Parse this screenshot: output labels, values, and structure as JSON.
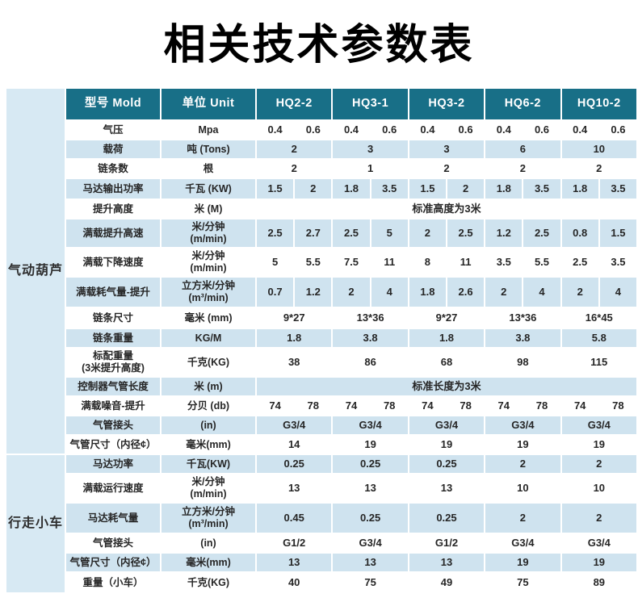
{
  "title": "相关技术参数表",
  "colors": {
    "header_bg": "#186f87",
    "header_text": "#ffffff",
    "row_alt_bg": "#cfe3ef",
    "group_panel_bg": "#d7e9f3",
    "body_text": "#262626"
  },
  "table": {
    "header": {
      "model_col": "型号 Mold",
      "unit_col": "单位 Unit",
      "models": [
        "HQ2-2",
        "HQ3-1",
        "HQ3-2",
        "HQ6-2",
        "HQ10-2"
      ]
    },
    "groups": [
      {
        "label": "气动葫芦",
        "rows": 15
      },
      {
        "label": "行走小车",
        "rows": 6
      }
    ],
    "rows": [
      {
        "label": "气压",
        "unit": [
          "Mpa"
        ],
        "type": "dual",
        "values": [
          "0.4",
          "0.6",
          "0.4",
          "0.6",
          "0.4",
          "0.6",
          "0.4",
          "0.6",
          "0.4",
          "0.6"
        ]
      },
      {
        "label": "载荷",
        "unit": [
          "吨 (Tons)"
        ],
        "type": "single",
        "values": [
          "2",
          "3",
          "3",
          "6",
          "10"
        ]
      },
      {
        "label": "链条数",
        "unit": [
          "根"
        ],
        "type": "single",
        "values": [
          "2",
          "1",
          "2",
          "2",
          "2"
        ]
      },
      {
        "label": "马达输出功率",
        "unit": [
          "千瓦 (KW)"
        ],
        "type": "dual",
        "values": [
          "1.5",
          "2",
          "1.8",
          "3.5",
          "1.5",
          "2",
          "1.8",
          "3.5",
          "1.8",
          "3.5"
        ]
      },
      {
        "label": "提升高度",
        "unit": [
          "米 (M)"
        ],
        "type": "span",
        "values": [
          "标准高度为3米"
        ]
      },
      {
        "label": "满载提升高速",
        "unit": [
          "米/分钟",
          "(m/min)"
        ],
        "type": "dual",
        "values": [
          "2.5",
          "2.7",
          "2.5",
          "5",
          "2",
          "2.5",
          "1.2",
          "2.5",
          "0.8",
          "1.5"
        ]
      },
      {
        "label": "满载下降速度",
        "unit": [
          "米/分钟",
          "(m/min)"
        ],
        "type": "dual",
        "values": [
          "5",
          "5.5",
          "7.5",
          "11",
          "8",
          "11",
          "3.5",
          "5.5",
          "2.5",
          "3.5"
        ]
      },
      {
        "label": "满载耗气量-提升",
        "unit": [
          "立方米/分钟",
          "(m³/min)"
        ],
        "type": "dual",
        "values": [
          "0.7",
          "1.2",
          "2",
          "4",
          "1.8",
          "2.6",
          "2",
          "4",
          "2",
          "4"
        ]
      },
      {
        "label": "链条尺寸",
        "unit": [
          "毫米 (mm)"
        ],
        "type": "single",
        "values": [
          "9*27",
          "13*36",
          "9*27",
          "13*36",
          "16*45"
        ]
      },
      {
        "label": "链条重量",
        "unit": [
          "KG/M"
        ],
        "type": "single",
        "values": [
          "1.8",
          "3.8",
          "1.8",
          "3.8",
          "5.8"
        ]
      },
      {
        "label": "标配重量",
        "label2": "(3米提升高度)",
        "unit": [
          "千克(KG)"
        ],
        "type": "single",
        "values": [
          "38",
          "86",
          "68",
          "98",
          "115"
        ]
      },
      {
        "label": "控制器气管长度",
        "unit": [
          "米 (m)"
        ],
        "type": "span",
        "values": [
          "标准长度为3米"
        ]
      },
      {
        "label": "满载噪音-提升",
        "unit": [
          "分贝 (db)"
        ],
        "type": "dual",
        "values": [
          "74",
          "78",
          "74",
          "78",
          "74",
          "78",
          "74",
          "78",
          "74",
          "78"
        ]
      },
      {
        "label": "气管接头",
        "unit": [
          "(in)"
        ],
        "type": "single",
        "values": [
          "G3/4",
          "G3/4",
          "G3/4",
          "G3/4",
          "G3/4"
        ]
      },
      {
        "label": "气管尺寸（内径¢）",
        "unit": [
          "毫米(mm)"
        ],
        "type": "single",
        "values": [
          "14",
          "19",
          "19",
          "19",
          "19"
        ]
      },
      {
        "label": "马达功率",
        "unit": [
          "千瓦(KW)"
        ],
        "type": "single",
        "values": [
          "0.25",
          "0.25",
          "0.25",
          "2",
          "2"
        ]
      },
      {
        "label": "满载运行速度",
        "unit": [
          "米/分钟",
          "(m/min)"
        ],
        "type": "single",
        "values": [
          "13",
          "13",
          "13",
          "10",
          "10"
        ]
      },
      {
        "label": "马达耗气量",
        "unit": [
          "立方米/分钟",
          "(m³/min)"
        ],
        "type": "single",
        "values": [
          "0.45",
          "0.25",
          "0.25",
          "2",
          "2"
        ]
      },
      {
        "label": "气管接头",
        "unit": [
          "(in)"
        ],
        "type": "single",
        "values": [
          "G1/2",
          "G3/4",
          "G1/2",
          "G3/4",
          "G3/4"
        ]
      },
      {
        "label": "气管尺寸（内径¢）",
        "unit": [
          "毫米(mm)"
        ],
        "type": "single",
        "values": [
          "13",
          "13",
          "13",
          "19",
          "19"
        ]
      },
      {
        "label": "重量（小车）",
        "unit": [
          "千克(KG)"
        ],
        "type": "single",
        "values": [
          "40",
          "75",
          "49",
          "75",
          "89"
        ]
      }
    ]
  }
}
